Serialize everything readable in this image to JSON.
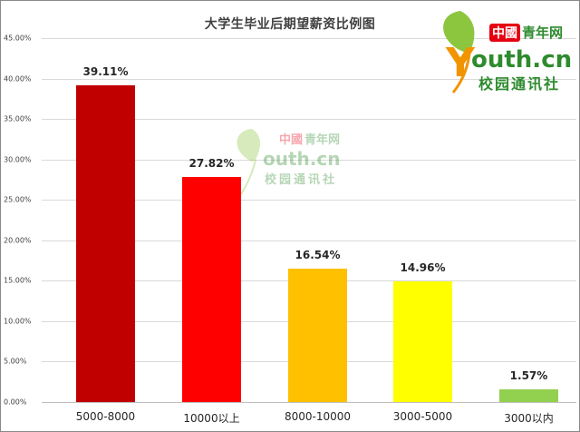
{
  "chart_data": {
    "type": "bar",
    "title": "大学生毕业后期望薪资比例图",
    "categories": [
      "5000-8000",
      "10000以上",
      "8000-10000",
      "3000-5000",
      "3000以内"
    ],
    "values": [
      39.11,
      27.82,
      16.54,
      14.96,
      1.57
    ],
    "value_labels": [
      "39.11%",
      "27.82%",
      "16.54%",
      "14.96%",
      "1.57%"
    ],
    "bar_colors": [
      "#c00000",
      "#ff0000",
      "#ffc000",
      "#ffff00",
      "#92d050"
    ],
    "xlabel": "",
    "ylabel": "",
    "ylim": [
      0,
      45
    ],
    "y_ticks": [
      "0.00%",
      "5.00%",
      "10.00%",
      "15.00%",
      "20.00%",
      "25.00%",
      "30.00%",
      "35.00%",
      "40.00%",
      "45.00%"
    ],
    "grid": true,
    "legend": null
  },
  "watermark": {
    "brand_top": "中國青年网",
    "brand_red": "中國",
    "brand_green": "青年网",
    "brand_main": "outh.cn",
    "brand_y": "Y",
    "subtitle": "校园通讯社"
  },
  "colors": {
    "logo_red": "#e60012",
    "logo_green": "#2e8b2e",
    "logo_orange": "#f29400",
    "logo_leaf": "#8cc63f"
  }
}
